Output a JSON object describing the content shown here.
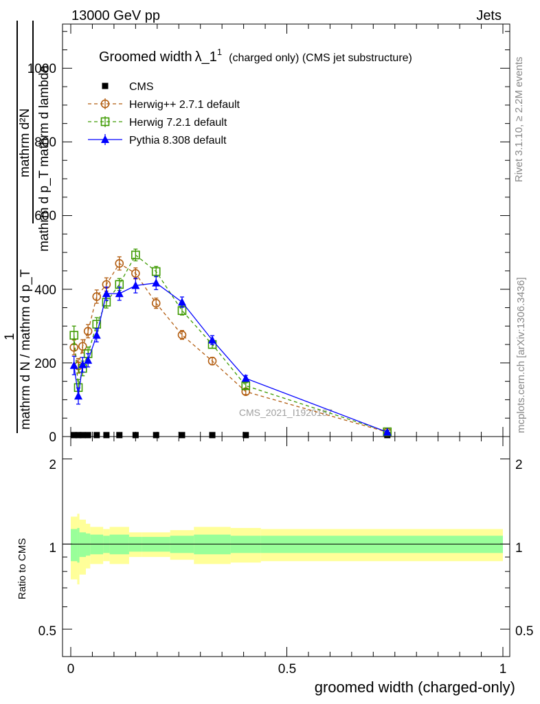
{
  "header": {
    "left": "13000 GeV pp",
    "right": "Jets"
  },
  "side_labels": {
    "rivet": "Rivet 3.1.10, ≥ 2.2M events",
    "mcplots": "mcplots.cern.ch [arXiv:1306.3436]"
  },
  "watermark": "CMS_2021_I1920187",
  "chart_data": {
    "type": "line",
    "title": "Groomed width",
    "title_symbol": "λ_1",
    "title_sup": "1",
    "title_note": "(charged only) (CMS jet substructure)",
    "ylabel_numerator": "mathrm d²N",
    "ylabel_denominator": "mathrm d p_T mathrm d lambda",
    "ylabel_prefactor": "1",
    "ylabel_outer_denominator": "mathrm d N / mathrm d p_T",
    "xlabel": "groomed width (charged-only)",
    "ratio_ylabel": "Ratio to CMS",
    "xlim": [
      0,
      1
    ],
    "ylim": [
      0,
      1120
    ],
    "ratio_ylim": [
      0.4,
      2.4
    ],
    "x_ticks": [
      "0",
      "0.5",
      "1"
    ],
    "y_ticks": [
      "0",
      "200",
      "400",
      "600",
      "800",
      "1000"
    ],
    "ratio_ticks": [
      "0.5",
      "1",
      "2"
    ],
    "x": [
      0.0075,
      0.0175,
      0.0275,
      0.04,
      0.06,
      0.0825,
      0.1125,
      0.15,
      0.1975,
      0.2575,
      0.3275,
      0.405,
      0.7325
    ],
    "bin_edges": [
      0.0,
      0.015,
      0.02,
      0.035,
      0.045,
      0.075,
      0.09,
      0.135,
      0.165,
      0.23,
      0.285,
      0.37,
      0.44,
      1.0
    ],
    "series": [
      {
        "name": "CMS",
        "marker": "square",
        "color": "#000000",
        "values": [
          4,
          4,
          4,
          4,
          4,
          4,
          4,
          4,
          4,
          4,
          4,
          4,
          4
        ]
      },
      {
        "name": "Herwig++ 2.7.1 default",
        "marker": "circle",
        "color": "#b25c0f",
        "values": [
          242,
          192,
          245,
          286,
          380,
          413,
          470,
          443,
          362,
          276,
          205,
          122,
          12
        ],
        "errors": [
          20,
          20,
          18,
          18,
          18,
          18,
          18,
          15,
          14,
          12,
          10,
          8,
          4
        ]
      },
      {
        "name": "Herwig 7.2.1 default",
        "marker": "open-square",
        "color": "#3d9a00",
        "values": [
          275,
          133,
          185,
          225,
          305,
          365,
          413,
          493,
          448,
          342,
          250,
          138,
          13
        ],
        "errors": [
          25,
          22,
          20,
          18,
          18,
          16,
          16,
          16,
          14,
          12,
          10,
          8,
          4
        ]
      },
      {
        "name": "Pythia 8.308 default",
        "marker": "triangle",
        "color": "#0000ff",
        "values": [
          193,
          110,
          195,
          207,
          275,
          388,
          388,
          410,
          417,
          365,
          262,
          158,
          12
        ],
        "errors": [
          25,
          22,
          20,
          18,
          18,
          18,
          18,
          20,
          18,
          14,
          12,
          8,
          4
        ]
      }
    ],
    "ratio_band": {
      "inner": [
        0.13,
        0.14,
        0.1,
        0.09,
        0.08,
        0.07,
        0.08,
        0.06,
        0.06,
        0.07,
        0.08,
        0.07,
        0.07
      ],
      "outer": [
        0.25,
        0.28,
        0.22,
        0.18,
        0.15,
        0.13,
        0.15,
        0.1,
        0.1,
        0.12,
        0.15,
        0.14,
        0.13
      ]
    }
  }
}
